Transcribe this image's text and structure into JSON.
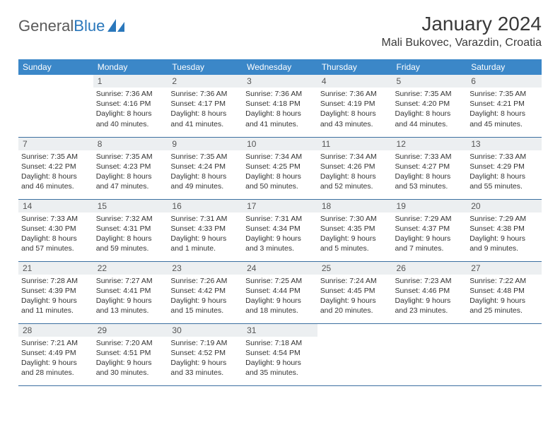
{
  "logo": {
    "text1": "General",
    "text2": "Blue"
  },
  "title": "January 2024",
  "location": "Mali Bukovec, Varazdin, Croatia",
  "colors": {
    "header_bg": "#3b87c8",
    "header_text": "#ffffff",
    "daynum_bg": "#eceff1",
    "row_border": "#3b6fa0",
    "logo_gray": "#5a5a5a",
    "logo_blue": "#2a77bb"
  },
  "weekdays": [
    "Sunday",
    "Monday",
    "Tuesday",
    "Wednesday",
    "Thursday",
    "Friday",
    "Saturday"
  ],
  "weeks": [
    [
      {
        "n": "",
        "sr": "",
        "ss": "",
        "dl": ""
      },
      {
        "n": "1",
        "sr": "Sunrise: 7:36 AM",
        "ss": "Sunset: 4:16 PM",
        "dl": "Daylight: 8 hours and 40 minutes."
      },
      {
        "n": "2",
        "sr": "Sunrise: 7:36 AM",
        "ss": "Sunset: 4:17 PM",
        "dl": "Daylight: 8 hours and 41 minutes."
      },
      {
        "n": "3",
        "sr": "Sunrise: 7:36 AM",
        "ss": "Sunset: 4:18 PM",
        "dl": "Daylight: 8 hours and 41 minutes."
      },
      {
        "n": "4",
        "sr": "Sunrise: 7:36 AM",
        "ss": "Sunset: 4:19 PM",
        "dl": "Daylight: 8 hours and 43 minutes."
      },
      {
        "n": "5",
        "sr": "Sunrise: 7:35 AM",
        "ss": "Sunset: 4:20 PM",
        "dl": "Daylight: 8 hours and 44 minutes."
      },
      {
        "n": "6",
        "sr": "Sunrise: 7:35 AM",
        "ss": "Sunset: 4:21 PM",
        "dl": "Daylight: 8 hours and 45 minutes."
      }
    ],
    [
      {
        "n": "7",
        "sr": "Sunrise: 7:35 AM",
        "ss": "Sunset: 4:22 PM",
        "dl": "Daylight: 8 hours and 46 minutes."
      },
      {
        "n": "8",
        "sr": "Sunrise: 7:35 AM",
        "ss": "Sunset: 4:23 PM",
        "dl": "Daylight: 8 hours and 47 minutes."
      },
      {
        "n": "9",
        "sr": "Sunrise: 7:35 AM",
        "ss": "Sunset: 4:24 PM",
        "dl": "Daylight: 8 hours and 49 minutes."
      },
      {
        "n": "10",
        "sr": "Sunrise: 7:34 AM",
        "ss": "Sunset: 4:25 PM",
        "dl": "Daylight: 8 hours and 50 minutes."
      },
      {
        "n": "11",
        "sr": "Sunrise: 7:34 AM",
        "ss": "Sunset: 4:26 PM",
        "dl": "Daylight: 8 hours and 52 minutes."
      },
      {
        "n": "12",
        "sr": "Sunrise: 7:33 AM",
        "ss": "Sunset: 4:27 PM",
        "dl": "Daylight: 8 hours and 53 minutes."
      },
      {
        "n": "13",
        "sr": "Sunrise: 7:33 AM",
        "ss": "Sunset: 4:29 PM",
        "dl": "Daylight: 8 hours and 55 minutes."
      }
    ],
    [
      {
        "n": "14",
        "sr": "Sunrise: 7:33 AM",
        "ss": "Sunset: 4:30 PM",
        "dl": "Daylight: 8 hours and 57 minutes."
      },
      {
        "n": "15",
        "sr": "Sunrise: 7:32 AM",
        "ss": "Sunset: 4:31 PM",
        "dl": "Daylight: 8 hours and 59 minutes."
      },
      {
        "n": "16",
        "sr": "Sunrise: 7:31 AM",
        "ss": "Sunset: 4:33 PM",
        "dl": "Daylight: 9 hours and 1 minute."
      },
      {
        "n": "17",
        "sr": "Sunrise: 7:31 AM",
        "ss": "Sunset: 4:34 PM",
        "dl": "Daylight: 9 hours and 3 minutes."
      },
      {
        "n": "18",
        "sr": "Sunrise: 7:30 AM",
        "ss": "Sunset: 4:35 PM",
        "dl": "Daylight: 9 hours and 5 minutes."
      },
      {
        "n": "19",
        "sr": "Sunrise: 7:29 AM",
        "ss": "Sunset: 4:37 PM",
        "dl": "Daylight: 9 hours and 7 minutes."
      },
      {
        "n": "20",
        "sr": "Sunrise: 7:29 AM",
        "ss": "Sunset: 4:38 PM",
        "dl": "Daylight: 9 hours and 9 minutes."
      }
    ],
    [
      {
        "n": "21",
        "sr": "Sunrise: 7:28 AM",
        "ss": "Sunset: 4:39 PM",
        "dl": "Daylight: 9 hours and 11 minutes."
      },
      {
        "n": "22",
        "sr": "Sunrise: 7:27 AM",
        "ss": "Sunset: 4:41 PM",
        "dl": "Daylight: 9 hours and 13 minutes."
      },
      {
        "n": "23",
        "sr": "Sunrise: 7:26 AM",
        "ss": "Sunset: 4:42 PM",
        "dl": "Daylight: 9 hours and 15 minutes."
      },
      {
        "n": "24",
        "sr": "Sunrise: 7:25 AM",
        "ss": "Sunset: 4:44 PM",
        "dl": "Daylight: 9 hours and 18 minutes."
      },
      {
        "n": "25",
        "sr": "Sunrise: 7:24 AM",
        "ss": "Sunset: 4:45 PM",
        "dl": "Daylight: 9 hours and 20 minutes."
      },
      {
        "n": "26",
        "sr": "Sunrise: 7:23 AM",
        "ss": "Sunset: 4:46 PM",
        "dl": "Daylight: 9 hours and 23 minutes."
      },
      {
        "n": "27",
        "sr": "Sunrise: 7:22 AM",
        "ss": "Sunset: 4:48 PM",
        "dl": "Daylight: 9 hours and 25 minutes."
      }
    ],
    [
      {
        "n": "28",
        "sr": "Sunrise: 7:21 AM",
        "ss": "Sunset: 4:49 PM",
        "dl": "Daylight: 9 hours and 28 minutes."
      },
      {
        "n": "29",
        "sr": "Sunrise: 7:20 AM",
        "ss": "Sunset: 4:51 PM",
        "dl": "Daylight: 9 hours and 30 minutes."
      },
      {
        "n": "30",
        "sr": "Sunrise: 7:19 AM",
        "ss": "Sunset: 4:52 PM",
        "dl": "Daylight: 9 hours and 33 minutes."
      },
      {
        "n": "31",
        "sr": "Sunrise: 7:18 AM",
        "ss": "Sunset: 4:54 PM",
        "dl": "Daylight: 9 hours and 35 minutes."
      },
      {
        "n": "",
        "sr": "",
        "ss": "",
        "dl": ""
      },
      {
        "n": "",
        "sr": "",
        "ss": "",
        "dl": ""
      },
      {
        "n": "",
        "sr": "",
        "ss": "",
        "dl": ""
      }
    ]
  ]
}
